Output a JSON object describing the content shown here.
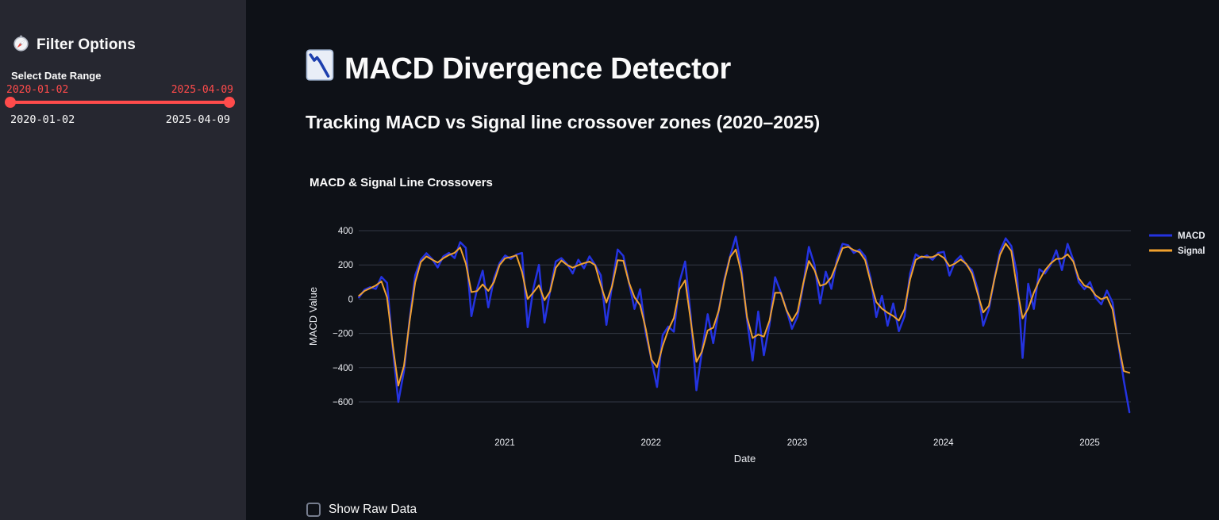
{
  "sidebar": {
    "icon": "compass-icon",
    "title": "Filter Options",
    "slider": {
      "label": "Select Date Range",
      "start_value": "2020-01-02",
      "end_value": "2025-04-09",
      "min_label": "2020-01-02",
      "max_label": "2025-04-09",
      "accent_color": "#ff4b4b"
    }
  },
  "main": {
    "title_icon": "chart-decreasing-icon",
    "title": "MACD Divergence Detector",
    "subtitle": "Tracking MACD vs Signal line crossover zones (2020–2025)",
    "checkbox": {
      "label": "Show Raw Data",
      "checked": false
    }
  },
  "chart_data": {
    "type": "line",
    "title": "MACD & Signal Line Crossovers",
    "xlabel": "Date",
    "ylabel": "MACD Value",
    "x_ticks": [
      2021,
      2022,
      2023,
      2024,
      2025
    ],
    "x_tick_labels": [
      "2021",
      "2022",
      "2023",
      "2024",
      "2025"
    ],
    "y_ticks": [
      400,
      200,
      0,
      -200,
      -400,
      -600
    ],
    "y_tick_labels": [
      "400",
      "200",
      "0",
      "−200",
      "−400",
      "−600"
    ],
    "x_range": [
      2020.0,
      2025.35
    ],
    "y_range": [
      -700,
      440
    ],
    "grid": true,
    "legend_position": "top-right",
    "background": "#0e1117",
    "grid_color": "#333845",
    "text_color": "#ebedf2",
    "x_start": 2020.003,
    "x_step": 0.03846,
    "series": [
      {
        "name": "MACD",
        "color": "#2433e0",
        "values": [
          10,
          55,
          70,
          60,
          130,
          95,
          -280,
          -600,
          -420,
          -120,
          140,
          230,
          268,
          235,
          185,
          250,
          270,
          240,
          333,
          300,
          -99,
          60,
          166,
          -48,
          120,
          210,
          255,
          235,
          260,
          270,
          -164,
          60,
          200,
          -137,
          50,
          220,
          240,
          205,
          150,
          230,
          180,
          250,
          200,
          140,
          -150,
          80,
          290,
          253,
          100,
          -57,
          58,
          -200,
          -350,
          -513,
          -210,
          -160,
          -190,
          100,
          220,
          -100,
          -532,
          -300,
          -88,
          -257,
          -60,
          120,
          250,
          365,
          180,
          -120,
          -358,
          -72,
          -327,
          -150,
          128,
          40,
          -60,
          -173,
          -100,
          80,
          305,
          200,
          -25,
          160,
          60,
          230,
          323,
          315,
          270,
          290,
          250,
          120,
          -104,
          20,
          -155,
          -25,
          -187,
          -100,
          150,
          262,
          240,
          255,
          230,
          270,
          277,
          138,
          220,
          253,
          200,
          170,
          60,
          -155,
          -60,
          120,
          280,
          355,
          310,
          150,
          -343,
          90,
          -57,
          175,
          150,
          200,
          285,
          170,
          323,
          230,
          100,
          58,
          100,
          8,
          -30,
          50,
          -20,
          -250,
          -475,
          -660
        ]
      },
      {
        "name": "Signal",
        "color": "#f0a12e",
        "values": [
          20,
          48,
          64,
          80,
          104,
          10,
          -266,
          -505,
          -390,
          -130,
          98,
          217,
          250,
          231,
          214,
          239,
          258,
          271,
          302,
          209,
          41,
          47,
          86,
          48,
          100,
          199,
          239,
          246,
          256,
          159,
          1,
          39,
          81,
          -6,
          46,
          183,
          226,
          200,
          184,
          198,
          210,
          220,
          198,
          83,
          -20,
          75,
          228,
          224,
          99,
          11,
          -35,
          -173,
          -353,
          -397,
          -273,
          -180,
          -110,
          58,
          110,
          -128,
          -366,
          -305,
          -183,
          -166,
          -64,
          108,
          246,
          290,
          151,
          -105,
          -227,
          -207,
          -219,
          -125,
          37,
          37,
          -63,
          -127,
          -73,
          91,
          223,
          170,
          78,
          89,
          128,
          211,
          298,
          306,
          286,
          275,
          228,
          97,
          -17,
          -55,
          -79,
          -98,
          -125,
          -59,
          116,
          229,
          249,
          245,
          246,
          262,
          241,
          193,
          208,
          232,
          206,
          150,
          34,
          -78,
          -39,
          115,
          259,
          325,
          281,
          67,
          -112,
          -55,
          38,
          111,
          169,
          209,
          235,
          237,
          262,
          221,
          122,
          79,
          67,
          22,
          -1,
          13,
          -60,
          -249,
          -420,
          -430
        ]
      }
    ]
  }
}
